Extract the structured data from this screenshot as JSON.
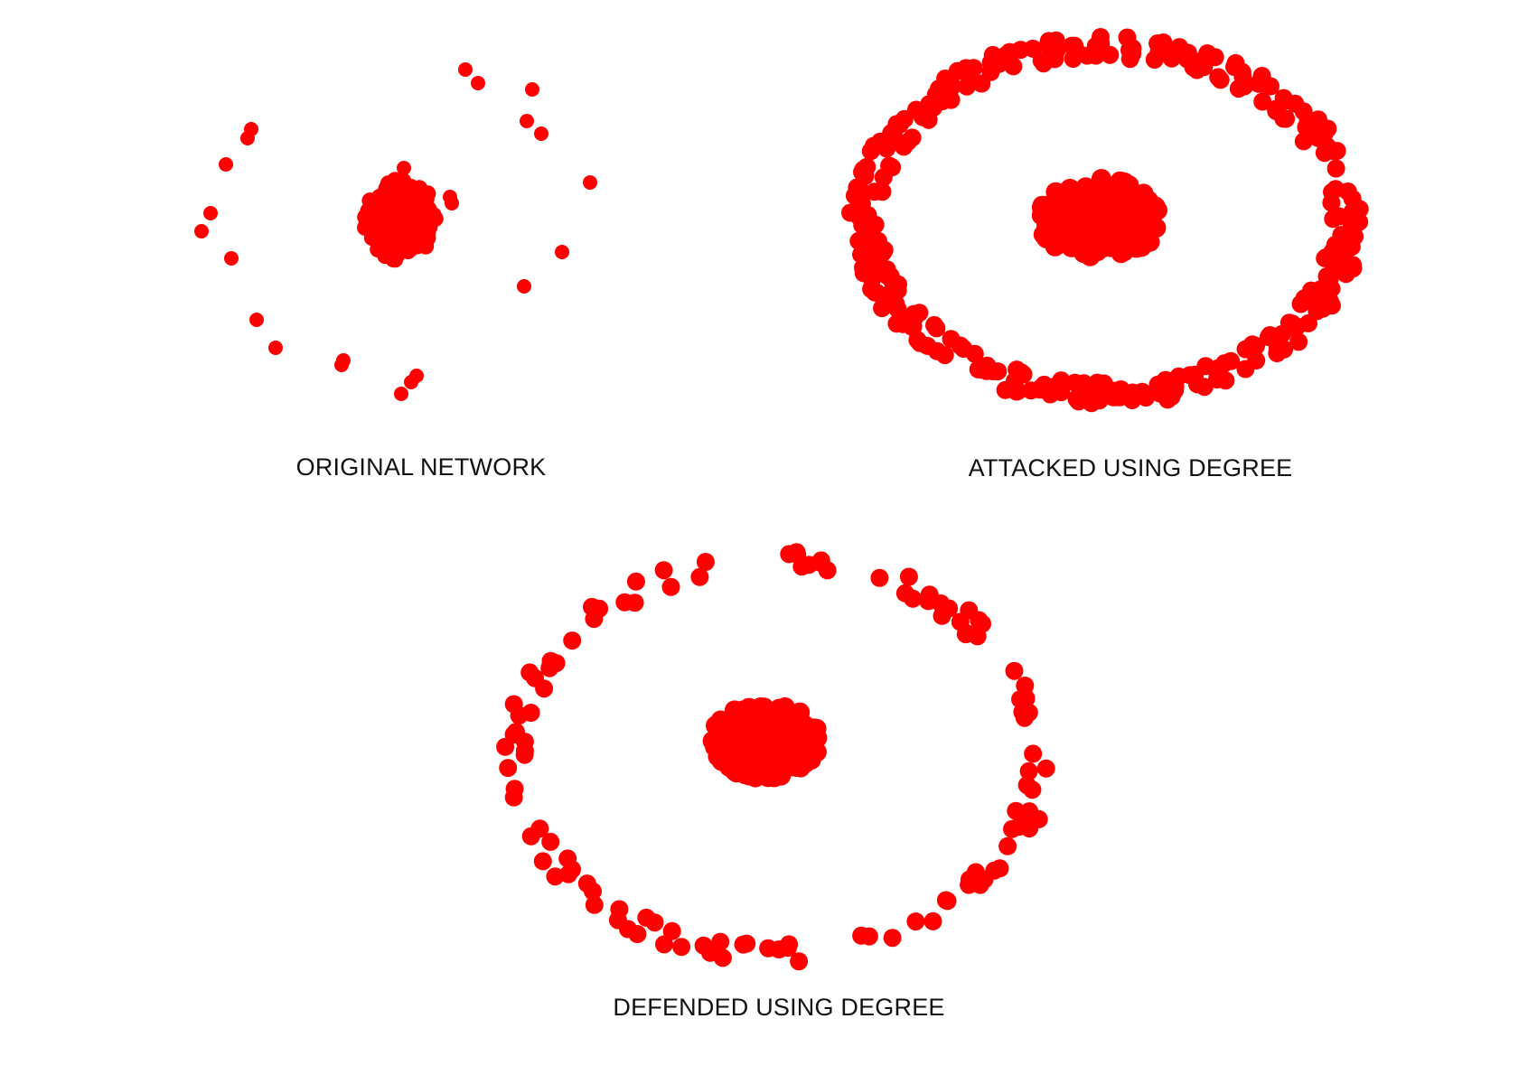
{
  "node_color": "#ff0000",
  "background_color": "#ffffff",
  "panels": [
    {
      "id": "original",
      "label": "ORIGINAL NETWORK",
      "hub_count": 160,
      "outlier_count": 30
    },
    {
      "id": "attacked",
      "label": "ATTACKED USING DEGREE",
      "hub_count": 160,
      "outlier_count": 340
    },
    {
      "id": "defended",
      "label": "DEFENDED USING DEGREE",
      "hub_count": 170,
      "outlier_count": 120
    }
  ]
}
